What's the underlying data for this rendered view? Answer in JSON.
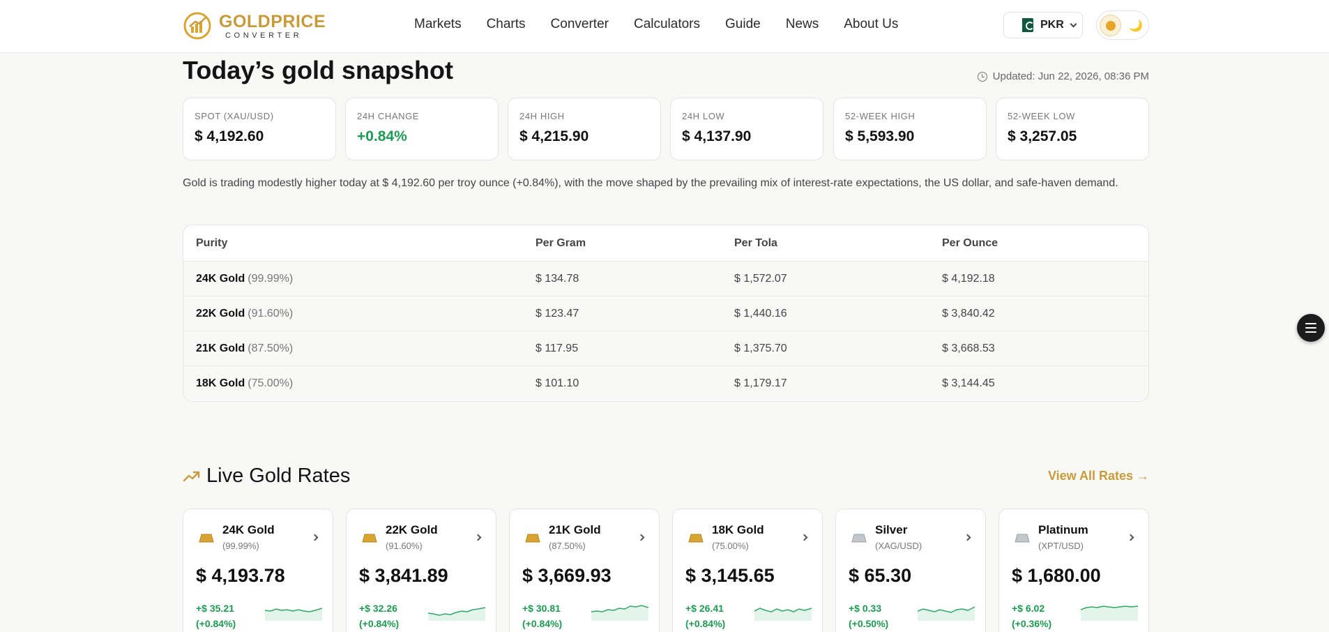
{
  "header": {
    "logo_title": "GOLDPRICE",
    "logo_sub": "CONVERTER",
    "nav": [
      "Markets",
      "Charts",
      "Converter",
      "Calculators",
      "Guide",
      "News",
      "About Us"
    ],
    "currency": "PKR",
    "moon_glyph": "🌙"
  },
  "snapshot": {
    "title": "Today’s gold snapshot",
    "updated": "Updated: Jun 22, 2026, 08:36 PM",
    "stats": [
      {
        "label": "SPOT (XAU/USD)",
        "value": "$ 4,192.60"
      },
      {
        "label": "24H CHANGE",
        "value": "+0.84%"
      },
      {
        "label": "24H HIGH",
        "value": "$ 4,215.90"
      },
      {
        "label": "24H LOW",
        "value": "$ 4,137.90"
      },
      {
        "label": "52-WEEK HIGH",
        "value": "$ 5,593.90"
      },
      {
        "label": "52-WEEK LOW",
        "value": "$ 3,257.05"
      }
    ],
    "description": "Gold is trading modestly higher today at $ 4,192.60 per troy ounce (+0.84%), with the move shaped by the prevailing mix of interest-rate expectations, the US dollar, and safe-haven demand."
  },
  "purity_table": {
    "headers": [
      "Purity",
      "Per Gram",
      "Per Tola",
      "Per Ounce"
    ],
    "rows": [
      {
        "name": "24K Gold",
        "pct": "(99.99%)",
        "gram": "$ 134.78",
        "tola": "$ 1,572.07",
        "ounce": "$ 4,192.18"
      },
      {
        "name": "22K Gold",
        "pct": "(91.60%)",
        "gram": "$ 123.47",
        "tola": "$ 1,440.16",
        "ounce": "$ 3,840.42"
      },
      {
        "name": "21K Gold",
        "pct": "(87.50%)",
        "gram": "$ 117.95",
        "tola": "$ 1,375.70",
        "ounce": "$ 3,668.53"
      },
      {
        "name": "18K Gold",
        "pct": "(75.00%)",
        "gram": "$ 101.10",
        "tola": "$ 1,179.17",
        "ounce": "$ 3,144.45"
      }
    ]
  },
  "live_rates": {
    "title": "Live Gold Rates",
    "view_all": "View All Rates →",
    "cards": [
      {
        "name": "24K Gold",
        "sub": "(99.99%)",
        "price": "$ 4,193.78",
        "change": "+$ 35.21",
        "pct": "(+0.84%)",
        "metal": "gold"
      },
      {
        "name": "22K Gold",
        "sub": "(91.60%)",
        "price": "$ 3,841.89",
        "change": "+$ 32.26",
        "pct": "(+0.84%)",
        "metal": "gold"
      },
      {
        "name": "21K Gold",
        "sub": "(87.50%)",
        "price": "$ 3,669.93",
        "change": "+$ 30.81",
        "pct": "(+0.84%)",
        "metal": "gold"
      },
      {
        "name": "18K Gold",
        "sub": "(75.00%)",
        "price": "$ 3,145.65",
        "change": "+$ 26.41",
        "pct": "(+0.84%)",
        "metal": "gold"
      },
      {
        "name": "Silver",
        "sub": "(XAG/USD)",
        "price": "$ 65.30",
        "change": "+$ 0.33",
        "pct": "(+0.50%)",
        "metal": "silver"
      },
      {
        "name": "Platinum",
        "sub": "(XPT/USD)",
        "price": "$ 1,680.00",
        "change": "+$ 6.02",
        "pct": "(+0.36%)",
        "metal": "silver"
      }
    ]
  },
  "colors": {
    "accent": "#c89b3a",
    "positive": "#1f9a52",
    "gold_bar": "#d9a532",
    "silver_bar": "#c2c7cc"
  }
}
